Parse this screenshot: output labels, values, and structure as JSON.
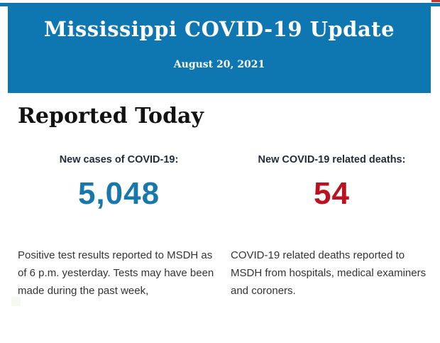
{
  "page": {
    "background": "#ffffff"
  },
  "accents": {
    "top_bar_color": "#0e76b1",
    "corner_mark_color": "#c9352b",
    "faint_square_color": "#f5f9f2"
  },
  "header": {
    "background": "#0e76b1",
    "text_color": "#ffffff",
    "title": "Mississippi COVID-19 Update",
    "date": "August 20, 2021"
  },
  "main": {
    "heading": "Reported Today",
    "stats": [
      {
        "label": "New cases of COVID-19:",
        "value": "5,048",
        "value_color": "#1878ab",
        "description": "Positive test results reported to MSDH as\nof 6 p.m. yesterday. Tests may have been\nmade during the past week,"
      },
      {
        "label": "New COVID-19 related deaths:",
        "value": "54",
        "value_color": "#ba1221",
        "description": "COVID-19 related deaths reported to\nMSDH from hospitals, medical examiners\nand coroners."
      }
    ]
  }
}
